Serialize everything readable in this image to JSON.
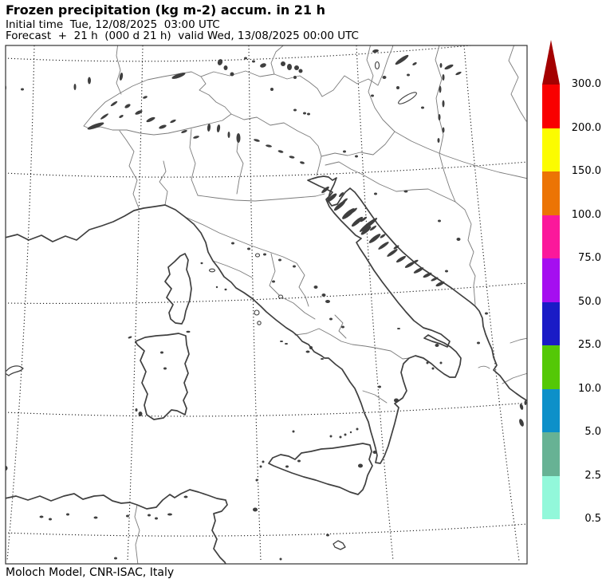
{
  "header": {
    "title": "Frozen precipitation (kg m-2) accum. in 21 h",
    "initial_time_line": "Initial time  Tue, 12/08/2025  03:00 UTC",
    "forecast_line": "Forecast  +  21 h  (000 d 21 h)  valid Wed, 13/08/2025 00:00 UTC"
  },
  "footer": {
    "credit": "Moloch Model, CNR-ISAC, Italy"
  },
  "colorbar": {
    "segments": [
      {
        "label": "300.0",
        "color": "#a40000",
        "shape": "arrow"
      },
      {
        "label": "200.0",
        "color": "#f90000",
        "shape": "rect"
      },
      {
        "label": "150.0",
        "color": "#fcfc00",
        "shape": "rect"
      },
      {
        "label": "100.0",
        "color": "#ec7404",
        "shape": "rect"
      },
      {
        "label": "75.0",
        "color": "#fb189b",
        "shape": "rect"
      },
      {
        "label": "50.0",
        "color": "#a50ef0",
        "shape": "rect"
      },
      {
        "label": "25.0",
        "color": "#1a1bc6",
        "shape": "rect"
      },
      {
        "label": "10.0",
        "color": "#54c806",
        "shape": "rect"
      },
      {
        "label": "5.0",
        "color": "#0d90c9",
        "shape": "rect"
      },
      {
        "label": "2.5",
        "color": "#67b294",
        "shape": "rect"
      },
      {
        "label": "0.5",
        "color": "#92f8da",
        "shape": "rect"
      }
    ]
  },
  "map_style": {
    "coast_color": "#3f3f3f",
    "border_color": "#7a7a7a",
    "grid_color": "#1a1a1a",
    "frame_color": "#333333"
  }
}
